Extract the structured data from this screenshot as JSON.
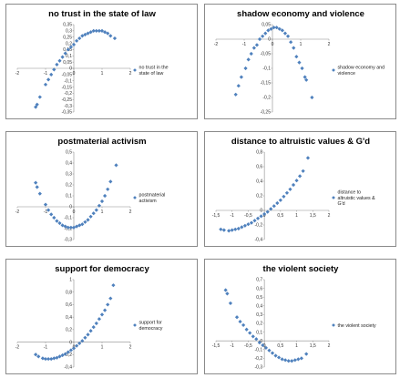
{
  "chart_data": [
    {
      "type": "scatter",
      "title": "no trust in the state of law",
      "legend": "no trust in the state of law",
      "legend_position": "right",
      "marker_color": "#4F81BD",
      "grid": false,
      "xlim": [
        -2,
        2
      ],
      "ylim": [
        -0.35,
        0.35
      ],
      "xticks": [
        -2,
        -1,
        0,
        1,
        2
      ],
      "xtick_labels": [
        "-2",
        "-1",
        "0",
        "1",
        "2"
      ],
      "yticks": [
        0.35,
        0.3,
        0.25,
        0.2,
        0.15,
        0.1,
        0.05,
        0,
        -0.05,
        -0.1,
        -0.15,
        -0.2,
        -0.25,
        -0.3,
        -0.35
      ],
      "ytick_labels": [
        "0,35",
        "0,3",
        "0,25",
        "0,2",
        "0,15",
        "0,1",
        "0,05",
        "0",
        "-0,05",
        "-0,1",
        "-0,15",
        "-0,2",
        "-0,25",
        "-0,3",
        "-0,35"
      ],
      "points": [
        {
          "x": -1.35,
          "y": -0.31
        },
        {
          "x": -1.3,
          "y": -0.29
        },
        {
          "x": -1.2,
          "y": -0.23
        },
        {
          "x": -1.0,
          "y": -0.13
        },
        {
          "x": -0.9,
          "y": -0.09
        },
        {
          "x": -0.8,
          "y": -0.05
        },
        {
          "x": -0.7,
          "y": -0.01
        },
        {
          "x": -0.6,
          "y": 0.03
        },
        {
          "x": -0.5,
          "y": 0.06
        },
        {
          "x": -0.4,
          "y": 0.09
        },
        {
          "x": -0.3,
          "y": 0.12
        },
        {
          "x": -0.2,
          "y": 0.15
        },
        {
          "x": -0.1,
          "y": 0.17
        },
        {
          "x": 0.0,
          "y": 0.19
        },
        {
          "x": 0.1,
          "y": 0.22
        },
        {
          "x": 0.2,
          "y": 0.24
        },
        {
          "x": 0.3,
          "y": 0.26
        },
        {
          "x": 0.4,
          "y": 0.27
        },
        {
          "x": 0.5,
          "y": 0.28
        },
        {
          "x": 0.6,
          "y": 0.29
        },
        {
          "x": 0.7,
          "y": 0.3
        },
        {
          "x": 0.8,
          "y": 0.3
        },
        {
          "x": 0.9,
          "y": 0.3
        },
        {
          "x": 1.0,
          "y": 0.3
        },
        {
          "x": 1.1,
          "y": 0.29
        },
        {
          "x": 1.2,
          "y": 0.28
        },
        {
          "x": 1.3,
          "y": 0.26
        },
        {
          "x": 1.45,
          "y": 0.24
        }
      ]
    },
    {
      "type": "scatter",
      "title": "shadow economy and violence",
      "legend": "shadow economy and violence",
      "legend_position": "right",
      "marker_color": "#4F81BD",
      "grid": false,
      "xlim": [
        -2,
        2
      ],
      "ylim": [
        -0.25,
        0.05
      ],
      "xticks": [
        -2,
        -1,
        0,
        1,
        2
      ],
      "xtick_labels": [
        "-2",
        "-1",
        "0",
        "1",
        "2"
      ],
      "yticks": [
        0.05,
        0,
        -0.05,
        -0.1,
        -0.15,
        -0.2,
        -0.25
      ],
      "ytick_labels": [
        "0,05",
        "0",
        "-0,05",
        "-0,1",
        "-0,15",
        "-0,2",
        "-0,25"
      ],
      "points": [
        {
          "x": -1.3,
          "y": -0.19
        },
        {
          "x": -1.2,
          "y": -0.16
        },
        {
          "x": -1.1,
          "y": -0.13
        },
        {
          "x": -0.95,
          "y": -0.1
        },
        {
          "x": -0.85,
          "y": -0.07
        },
        {
          "x": -0.75,
          "y": -0.05
        },
        {
          "x": -0.65,
          "y": -0.03
        },
        {
          "x": -0.55,
          "y": -0.02
        },
        {
          "x": -0.45,
          "y": 0.0
        },
        {
          "x": -0.35,
          "y": 0.01
        },
        {
          "x": -0.25,
          "y": 0.02
        },
        {
          "x": -0.15,
          "y": 0.03
        },
        {
          "x": -0.05,
          "y": 0.035
        },
        {
          "x": 0.05,
          "y": 0.04
        },
        {
          "x": 0.15,
          "y": 0.04
        },
        {
          "x": 0.25,
          "y": 0.035
        },
        {
          "x": 0.35,
          "y": 0.03
        },
        {
          "x": 0.45,
          "y": 0.02
        },
        {
          "x": 0.55,
          "y": 0.01
        },
        {
          "x": 0.65,
          "y": -0.01
        },
        {
          "x": 0.75,
          "y": -0.03
        },
        {
          "x": 0.85,
          "y": -0.06
        },
        {
          "x": 0.95,
          "y": -0.08
        },
        {
          "x": 1.05,
          "y": -0.1
        },
        {
          "x": 1.15,
          "y": -0.13
        },
        {
          "x": 1.2,
          "y": -0.14
        },
        {
          "x": 1.4,
          "y": -0.2
        }
      ]
    },
    {
      "type": "scatter",
      "title": "postmaterial activism",
      "legend": "postmaterial activism",
      "legend_position": "right",
      "marker_color": "#4F81BD",
      "grid": false,
      "xlim": [
        -2,
        2
      ],
      "ylim": [
        -0.3,
        0.5
      ],
      "xticks": [
        -2,
        -1,
        0,
        1,
        2
      ],
      "xtick_labels": [
        "-2",
        "-1",
        "0",
        "1",
        "2"
      ],
      "yticks": [
        0.5,
        0.4,
        0.3,
        0.2,
        0.1,
        0,
        -0.1,
        -0.2,
        -0.3
      ],
      "ytick_labels": [
        "0,5",
        "0,4",
        "0,3",
        "0,2",
        "0,1",
        "0",
        "-0,1",
        "-0,2",
        "-0,3"
      ],
      "points": [
        {
          "x": -1.35,
          "y": 0.22
        },
        {
          "x": -1.3,
          "y": 0.18
        },
        {
          "x": -1.2,
          "y": 0.12
        },
        {
          "x": -1.0,
          "y": 0.02
        },
        {
          "x": -0.9,
          "y": -0.03
        },
        {
          "x": -0.8,
          "y": -0.07
        },
        {
          "x": -0.7,
          "y": -0.1
        },
        {
          "x": -0.6,
          "y": -0.13
        },
        {
          "x": -0.5,
          "y": -0.15
        },
        {
          "x": -0.4,
          "y": -0.17
        },
        {
          "x": -0.3,
          "y": -0.18
        },
        {
          "x": -0.2,
          "y": -0.19
        },
        {
          "x": -0.1,
          "y": -0.19
        },
        {
          "x": 0.0,
          "y": -0.19
        },
        {
          "x": 0.1,
          "y": -0.18
        },
        {
          "x": 0.2,
          "y": -0.17
        },
        {
          "x": 0.3,
          "y": -0.16
        },
        {
          "x": 0.4,
          "y": -0.14
        },
        {
          "x": 0.5,
          "y": -0.12
        },
        {
          "x": 0.6,
          "y": -0.09
        },
        {
          "x": 0.7,
          "y": -0.06
        },
        {
          "x": 0.8,
          "y": -0.03
        },
        {
          "x": 0.9,
          "y": 0.01
        },
        {
          "x": 1.0,
          "y": 0.05
        },
        {
          "x": 1.1,
          "y": 0.1
        },
        {
          "x": 1.2,
          "y": 0.16
        },
        {
          "x": 1.3,
          "y": 0.23
        },
        {
          "x": 1.5,
          "y": 0.38
        }
      ]
    },
    {
      "type": "scatter",
      "title": "distance to altruistic values & G'd",
      "legend": "distance to altruistic values & G'd",
      "legend_position": "right",
      "marker_color": "#4F81BD",
      "grid": false,
      "xlim": [
        -1.5,
        2
      ],
      "ylim": [
        -0.4,
        0.8
      ],
      "xticks": [
        -1.5,
        -1,
        -0.5,
        0,
        0.5,
        1,
        1.5,
        2
      ],
      "xtick_labels": [
        "-1,5",
        "-1",
        "-0,5",
        "0",
        "0,5",
        "1",
        "1,5",
        "2"
      ],
      "yticks": [
        0.8,
        0.6,
        0.4,
        0.2,
        0,
        -0.2,
        -0.4
      ],
      "ytick_labels": [
        "0,8",
        "0,6",
        "0,4",
        "0,2",
        "0",
        "-0,2",
        "-0,4"
      ],
      "points": [
        {
          "x": -1.35,
          "y": -0.26
        },
        {
          "x": -1.25,
          "y": -0.27
        },
        {
          "x": -1.1,
          "y": -0.28
        },
        {
          "x": -1.0,
          "y": -0.27
        },
        {
          "x": -0.9,
          "y": -0.26
        },
        {
          "x": -0.8,
          "y": -0.25
        },
        {
          "x": -0.7,
          "y": -0.23
        },
        {
          "x": -0.6,
          "y": -0.21
        },
        {
          "x": -0.5,
          "y": -0.19
        },
        {
          "x": -0.4,
          "y": -0.17
        },
        {
          "x": -0.3,
          "y": -0.14
        },
        {
          "x": -0.2,
          "y": -0.11
        },
        {
          "x": -0.1,
          "y": -0.08
        },
        {
          "x": 0.0,
          "y": -0.05
        },
        {
          "x": 0.1,
          "y": -0.02
        },
        {
          "x": 0.2,
          "y": 0.02
        },
        {
          "x": 0.3,
          "y": 0.06
        },
        {
          "x": 0.4,
          "y": 0.1
        },
        {
          "x": 0.5,
          "y": 0.14
        },
        {
          "x": 0.6,
          "y": 0.19
        },
        {
          "x": 0.7,
          "y": 0.24
        },
        {
          "x": 0.8,
          "y": 0.29
        },
        {
          "x": 0.9,
          "y": 0.35
        },
        {
          "x": 1.0,
          "y": 0.41
        },
        {
          "x": 1.1,
          "y": 0.47
        },
        {
          "x": 1.2,
          "y": 0.54
        },
        {
          "x": 1.35,
          "y": 0.72
        }
      ]
    },
    {
      "type": "scatter",
      "title": "support for democracy",
      "legend": "support for democracy",
      "legend_position": "right",
      "marker_color": "#4F81BD",
      "grid": false,
      "xlim": [
        -2,
        2
      ],
      "ylim": [
        -0.4,
        1
      ],
      "xticks": [
        -2,
        -1,
        0,
        1,
        2
      ],
      "xtick_labels": [
        "-2",
        "-1",
        "0",
        "1",
        "2"
      ],
      "yticks": [
        1,
        0.8,
        0.6,
        0.4,
        0.2,
        0,
        -0.2,
        -0.4
      ],
      "ytick_labels": [
        "1",
        "0,8",
        "0,6",
        "0,4",
        "0,2",
        "0",
        "-0,2",
        "-0,4"
      ],
      "points": [
        {
          "x": -1.35,
          "y": -0.2
        },
        {
          "x": -1.25,
          "y": -0.23
        },
        {
          "x": -1.1,
          "y": -0.26
        },
        {
          "x": -1.0,
          "y": -0.27
        },
        {
          "x": -0.9,
          "y": -0.27
        },
        {
          "x": -0.8,
          "y": -0.27
        },
        {
          "x": -0.7,
          "y": -0.26
        },
        {
          "x": -0.6,
          "y": -0.25
        },
        {
          "x": -0.5,
          "y": -0.23
        },
        {
          "x": -0.4,
          "y": -0.21
        },
        {
          "x": -0.3,
          "y": -0.19
        },
        {
          "x": -0.2,
          "y": -0.16
        },
        {
          "x": -0.1,
          "y": -0.13
        },
        {
          "x": 0.0,
          "y": -0.1
        },
        {
          "x": 0.1,
          "y": -0.06
        },
        {
          "x": 0.2,
          "y": -0.02
        },
        {
          "x": 0.3,
          "y": 0.02
        },
        {
          "x": 0.4,
          "y": 0.07
        },
        {
          "x": 0.5,
          "y": 0.12
        },
        {
          "x": 0.6,
          "y": 0.18
        },
        {
          "x": 0.7,
          "y": 0.24
        },
        {
          "x": 0.8,
          "y": 0.3
        },
        {
          "x": 0.9,
          "y": 0.37
        },
        {
          "x": 1.0,
          "y": 0.44
        },
        {
          "x": 1.1,
          "y": 0.51
        },
        {
          "x": 1.2,
          "y": 0.6
        },
        {
          "x": 1.3,
          "y": 0.7
        },
        {
          "x": 1.4,
          "y": 0.91
        }
      ]
    },
    {
      "type": "scatter",
      "title": "the violent society",
      "legend": "the violent society",
      "legend_position": "right",
      "marker_color": "#4F81BD",
      "grid": false,
      "xlim": [
        -1.5,
        2
      ],
      "ylim": [
        -0.3,
        0.7
      ],
      "xticks": [
        -1.5,
        -1,
        -0.5,
        0,
        0.5,
        1,
        1.5,
        2
      ],
      "xtick_labels": [
        "-1,5",
        "-1",
        "-0,5",
        "0",
        "0,5",
        "1",
        "1,5",
        "2"
      ],
      "yticks": [
        0.7,
        0.6,
        0.5,
        0.4,
        0.3,
        0.2,
        0.1,
        0,
        -0.1,
        -0.2,
        -0.3
      ],
      "ytick_labels": [
        "0,7",
        "0,6",
        "0,5",
        "0,4",
        "0,3",
        "0,2",
        "0,1",
        "0",
        "-0,1",
        "-0,2",
        "-0,3"
      ],
      "points": [
        {
          "x": -1.2,
          "y": 0.58
        },
        {
          "x": -1.15,
          "y": 0.54
        },
        {
          "x": -1.05,
          "y": 0.43
        },
        {
          "x": -0.85,
          "y": 0.27
        },
        {
          "x": -0.75,
          "y": 0.22
        },
        {
          "x": -0.65,
          "y": 0.18
        },
        {
          "x": -0.55,
          "y": 0.13
        },
        {
          "x": -0.45,
          "y": 0.09
        },
        {
          "x": -0.35,
          "y": 0.05
        },
        {
          "x": -0.25,
          "y": 0.02
        },
        {
          "x": -0.15,
          "y": -0.02
        },
        {
          "x": -0.05,
          "y": -0.05
        },
        {
          "x": 0.05,
          "y": -0.08
        },
        {
          "x": 0.15,
          "y": -0.11
        },
        {
          "x": 0.25,
          "y": -0.14
        },
        {
          "x": 0.35,
          "y": -0.17
        },
        {
          "x": 0.45,
          "y": -0.19
        },
        {
          "x": 0.55,
          "y": -0.21
        },
        {
          "x": 0.65,
          "y": -0.22
        },
        {
          "x": 0.75,
          "y": -0.23
        },
        {
          "x": 0.85,
          "y": -0.23
        },
        {
          "x": 0.95,
          "y": -0.22
        },
        {
          "x": 1.05,
          "y": -0.21
        },
        {
          "x": 1.15,
          "y": -0.2
        },
        {
          "x": 1.3,
          "y": -0.15
        }
      ]
    }
  ]
}
